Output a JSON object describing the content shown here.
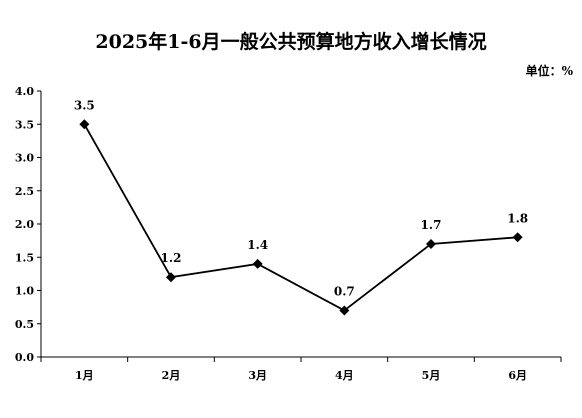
{
  "title": "2025年1-6月一般公共预算地方收入增长情况",
  "unit": "单位：%",
  "chart_data": {
    "type": "line",
    "title": "2025年1-6月一般公共预算地方收入增长情况",
    "unit": "单位：%",
    "categories": [
      "1月",
      "2月",
      "3月",
      "4月",
      "5月",
      "6月"
    ],
    "series": [
      {
        "values": [
          3.5,
          1.2,
          1.4,
          0.7,
          1.7,
          1.8
        ]
      }
    ],
    "data_labels": [
      "3.5",
      "1.2",
      "1.4",
      "0.7",
      "1.7",
      "1.8"
    ],
    "ylim": [
      0,
      4
    ],
    "yticks": [
      0,
      0.5,
      1,
      1.5,
      2,
      2.5,
      3,
      3.5,
      4
    ],
    "ytick_labels": [
      "0.0",
      "0.5",
      "1.0",
      "1.5",
      "2.0",
      "2.5",
      "3.0",
      "3.5",
      "4.0"
    ],
    "marker": "diamond",
    "line_color": "#000000",
    "grid": false,
    "legend": "none"
  }
}
